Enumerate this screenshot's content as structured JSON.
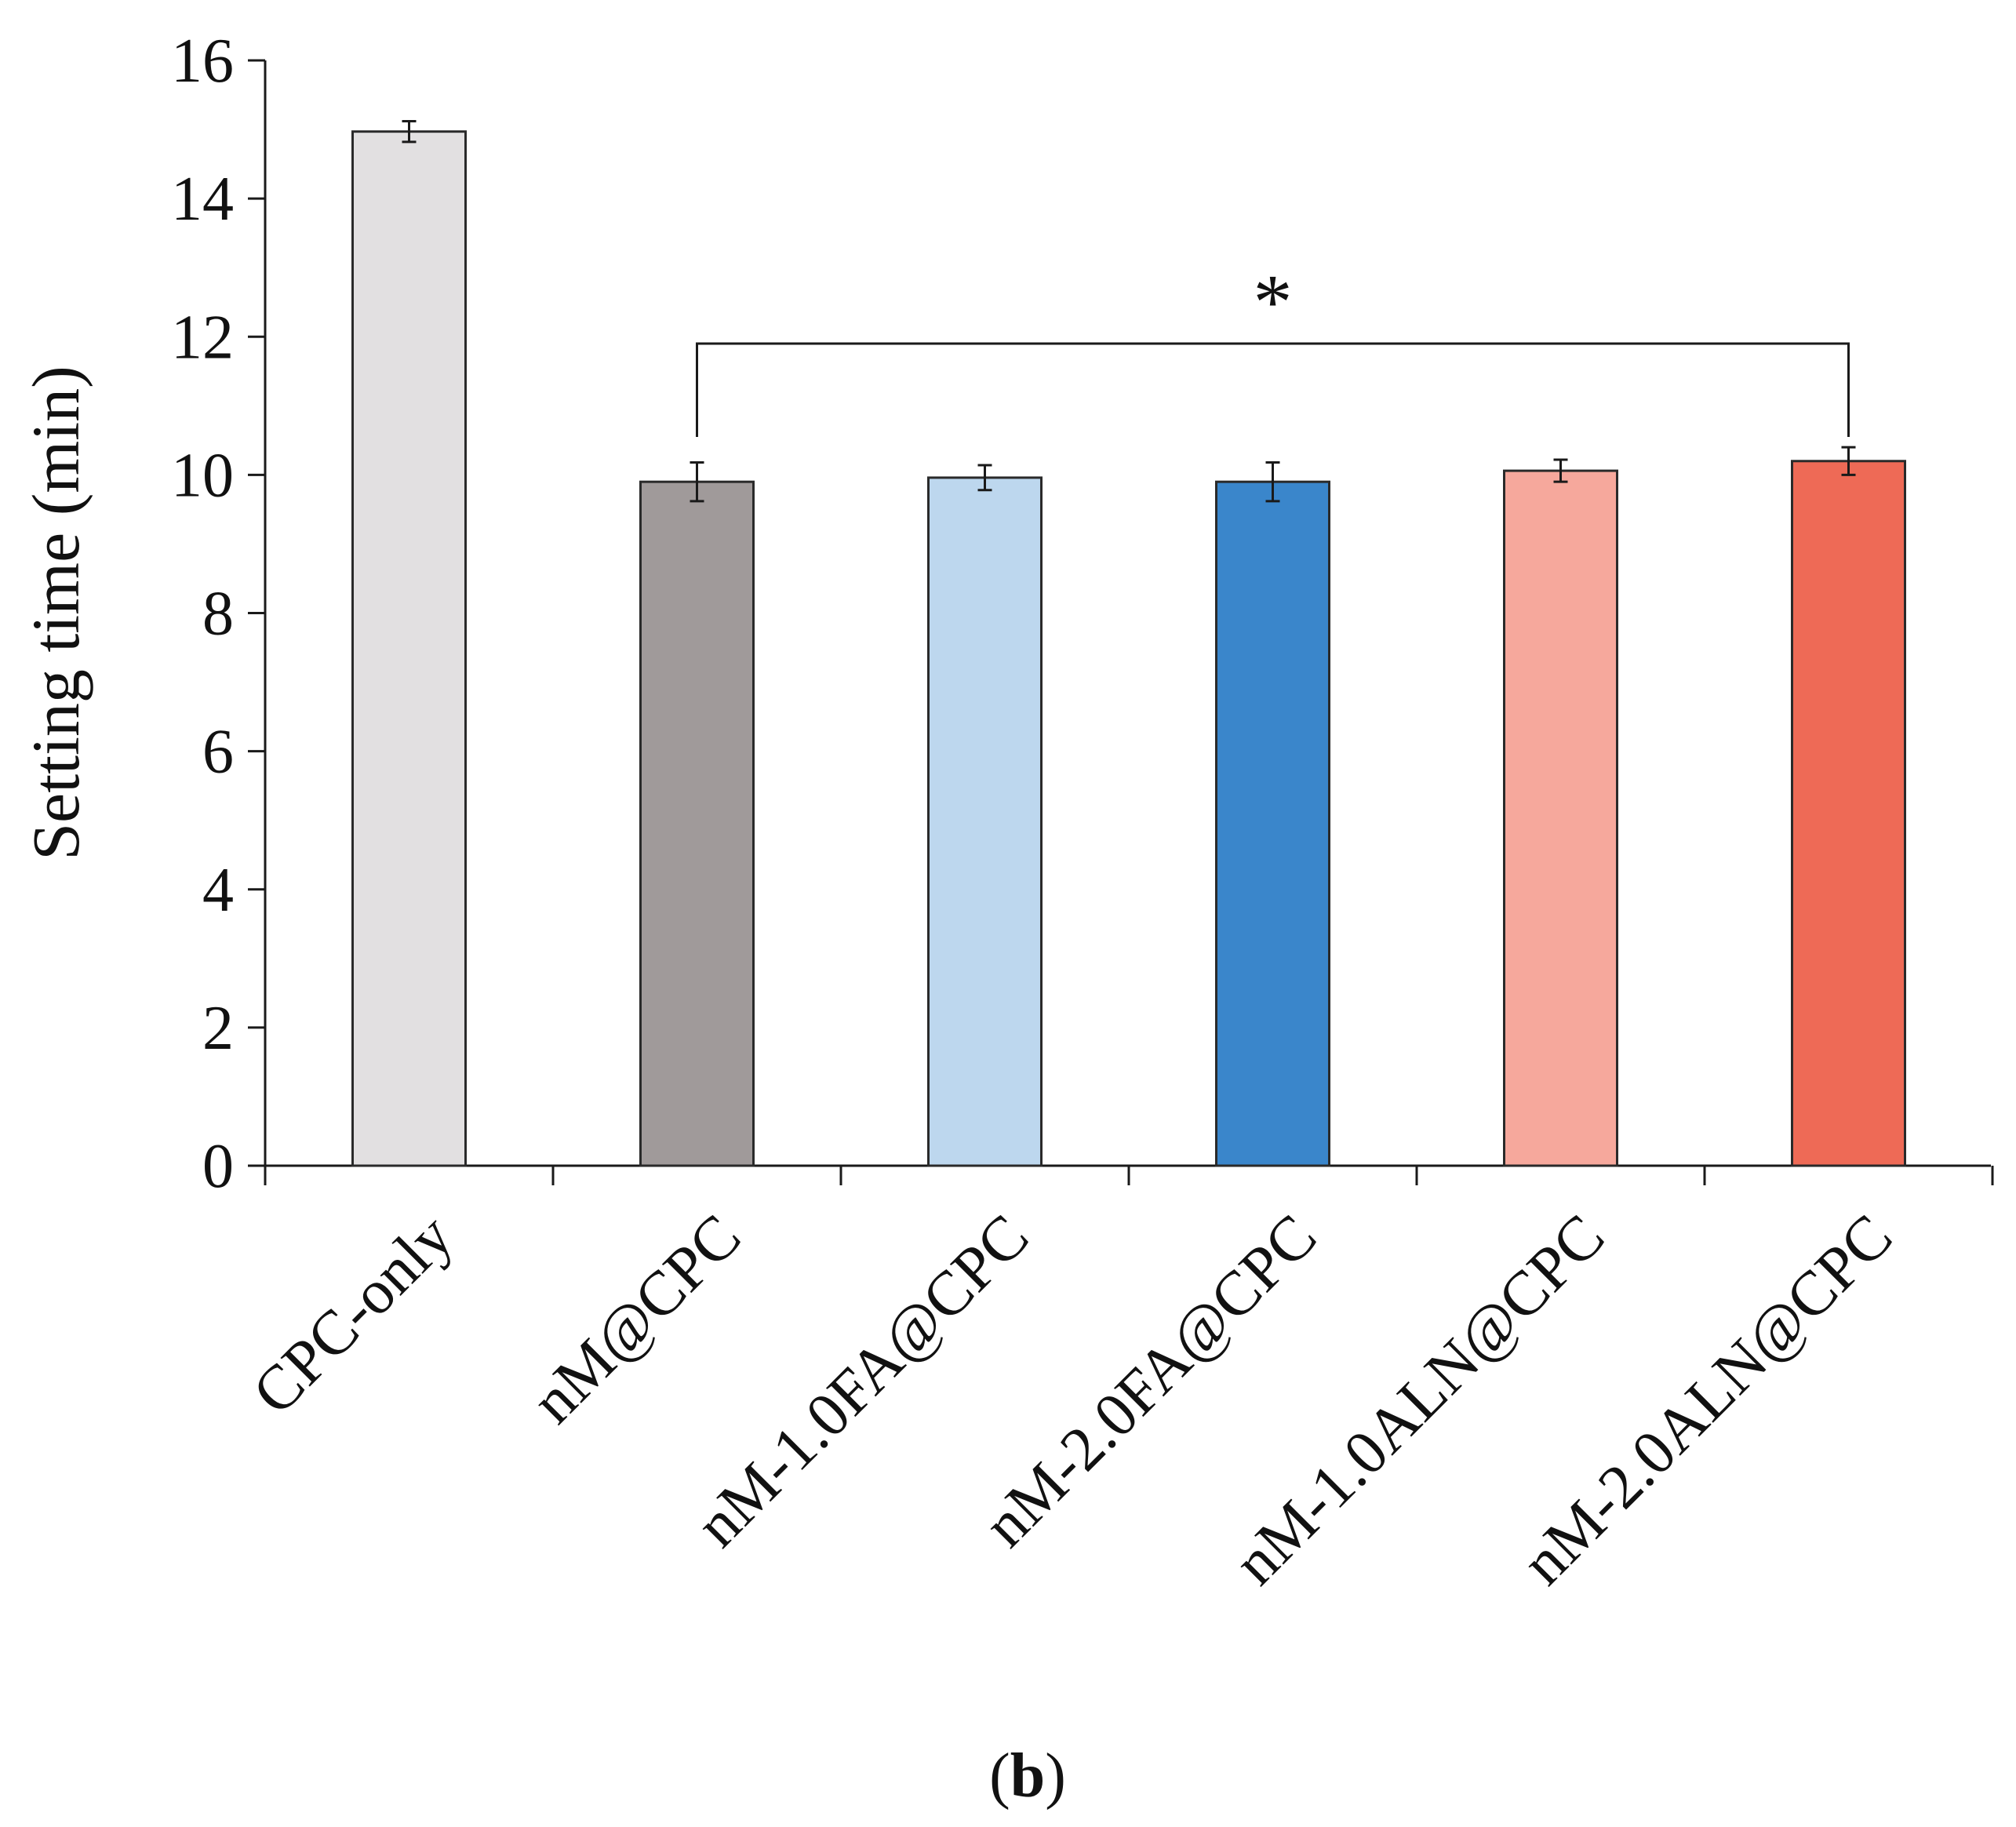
{
  "chart_data": {
    "type": "bar",
    "title": "",
    "xlabel": "",
    "ylabel": "Setting time (min)",
    "ylim": [
      0,
      16
    ],
    "yticks": [
      0,
      2,
      4,
      6,
      8,
      10,
      12,
      14,
      16
    ],
    "grid": false,
    "legend": "none",
    "categories": [
      "CPC-only",
      "nM@CPC",
      "nM-1.0FA@CPC",
      "nM-2.0FA@CPC",
      "nM-1.0ALN@CPC",
      "nM-2.0ALN@CPC"
    ],
    "values": [
      14.97,
      9.9,
      9.96,
      9.9,
      10.06,
      10.2
    ],
    "errors": [
      0.15,
      0.28,
      0.18,
      0.28,
      0.16,
      0.2
    ],
    "colors": [
      "#e2e0e1",
      "#a09a9a",
      "#bdd7ee",
      "#3a86cb",
      "#f6a89c",
      "#ee6a56"
    ],
    "significance": {
      "from_category": "nM@CPC",
      "to_category": "nM-2.0ALN@CPC",
      "label": "*",
      "bracket_level": 11.9,
      "drop_to": 10.55
    },
    "panel_label": "(b)"
  }
}
